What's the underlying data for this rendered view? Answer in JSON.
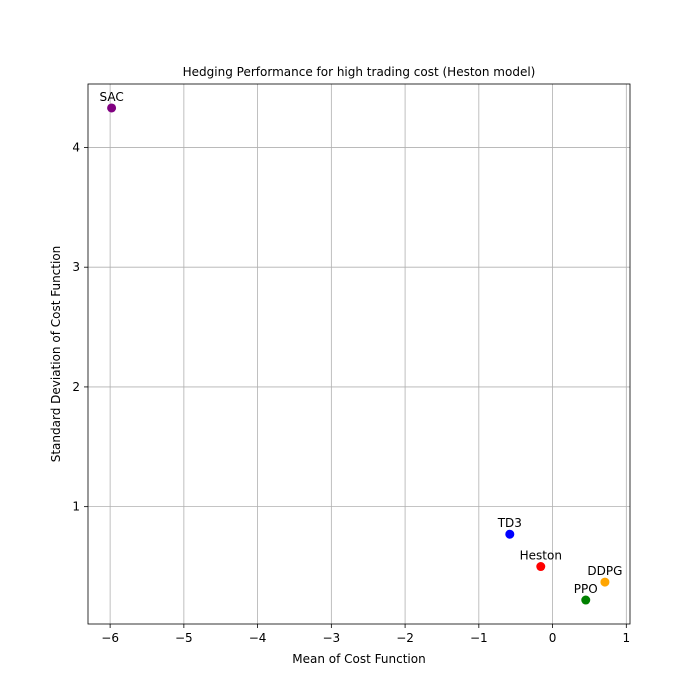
{
  "chart_data": {
    "type": "scatter",
    "title": "Hedging Performance for high trading cost (Heston model)",
    "xlabel": "Mean of Cost Function",
    "ylabel": "Standard Deviation of Cost Function",
    "xlim": [
      -6.3,
      1.05
    ],
    "ylim": [
      0.02,
      4.53
    ],
    "x_ticks": [
      -6,
      -5,
      -4,
      -3,
      -2,
      -1,
      0,
      1
    ],
    "y_ticks": [
      1,
      2,
      3,
      4
    ],
    "grid": true,
    "points": [
      {
        "label": "SAC",
        "x": -5.98,
        "y": 4.33,
        "color": "#800080"
      },
      {
        "label": "TD3",
        "x": -0.58,
        "y": 0.77,
        "color": "#0000ff"
      },
      {
        "label": "Heston",
        "x": -0.16,
        "y": 0.5,
        "color": "#ff0000"
      },
      {
        "label": "DDPG",
        "x": 0.71,
        "y": 0.37,
        "color": "#ffa500"
      },
      {
        "label": "PPO",
        "x": 0.45,
        "y": 0.22,
        "color": "#008000"
      }
    ]
  }
}
